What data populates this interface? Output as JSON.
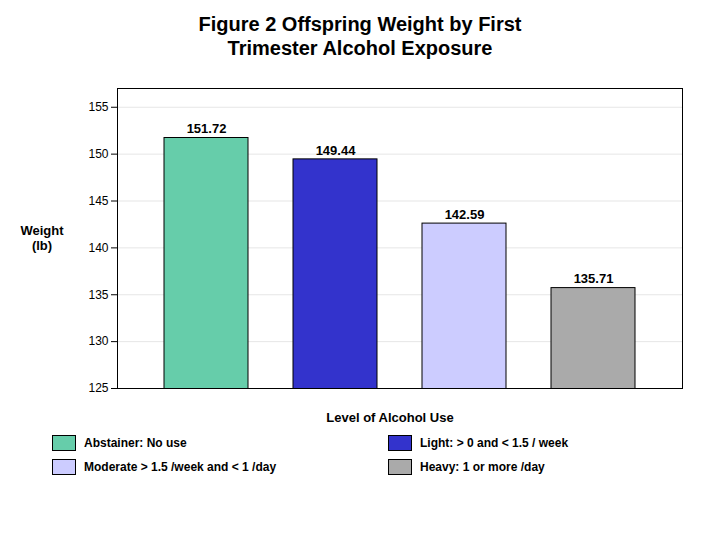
{
  "chart_data": {
    "type": "bar",
    "title": "Figure 2 Offspring Weight by First\nTrimester Alcohol Exposure",
    "categories": [
      "Abstainer",
      "Light",
      "Moderate",
      "Heavy"
    ],
    "values": [
      151.72,
      149.44,
      142.59,
      135.71
    ],
    "colors": [
      "#66CDAA",
      "#3333CC",
      "#CCCCFF",
      "#AAAAAA"
    ],
    "xlabel": "Level of Alcohol Use",
    "ylabel": "Weight\n(lb)",
    "ylim": [
      125,
      157
    ],
    "yticks": [
      125,
      130,
      135,
      140,
      145,
      150,
      155
    ],
    "grid": true,
    "data_labels": true,
    "tick_labels": "y",
    "legend": "bottom",
    "legend_labels": [
      "Abstainer: No use",
      "Light: > 0 and < 1.5 / week",
      "Moderate > 1.5 /week and < 1 /day",
      "Heavy: 1 or more /day"
    ]
  }
}
